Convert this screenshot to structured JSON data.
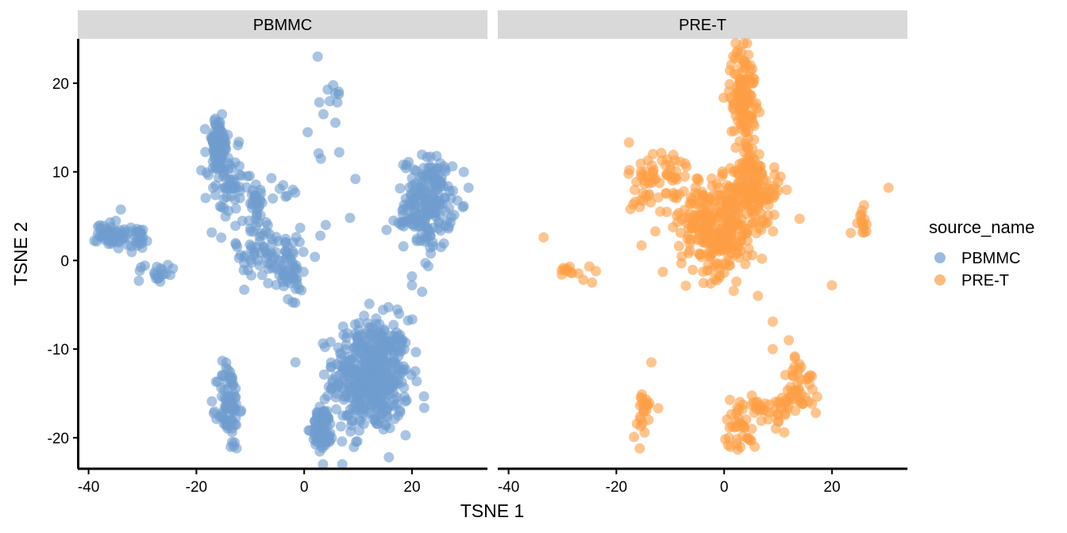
{
  "chart_data": {
    "type": "scatter",
    "xlabel": "TSNE 1",
    "ylabel": "TSNE 2",
    "xlim": [
      -42,
      34
    ],
    "ylim": [
      -23.5,
      25
    ],
    "x_ticks": [
      -40,
      -20,
      0,
      20
    ],
    "y_ticks": [
      -20,
      -10,
      0,
      10,
      20
    ],
    "panels": [
      "PBMMC",
      "PRE-T"
    ],
    "grid": false,
    "legend": {
      "title": "source_name",
      "placement": "right",
      "entries": [
        {
          "name": "PBMMC",
          "color": "#6f9ccf"
        },
        {
          "name": "PRE-T",
          "color": "#fe9e44"
        }
      ]
    },
    "series": [
      {
        "name": "PBMMC",
        "panel": "PBMMC",
        "color": "#6f9ccf",
        "clusters": [
          {
            "cx": 12.5,
            "cy": -13,
            "sx": 3.5,
            "sy": 3.2,
            "n": 480
          },
          {
            "cx": 23,
            "cy": 6.5,
            "sx": 2.2,
            "sy": 2.6,
            "n": 200
          },
          {
            "cx": -16,
            "cy": 13,
            "sx": 1.0,
            "sy": 1.6,
            "n": 90
          },
          {
            "cx": -14,
            "cy": 8,
            "sx": 2.0,
            "sy": 2.2,
            "n": 60
          },
          {
            "cx": -9,
            "cy": 7,
            "sx": 1.0,
            "sy": 1.5,
            "n": 25
          },
          {
            "cx": -36,
            "cy": 3,
            "sx": 1.2,
            "sy": 0.8,
            "n": 50
          },
          {
            "cx": -31,
            "cy": 2.5,
            "sx": 1.4,
            "sy": 0.7,
            "n": 30
          },
          {
            "cx": -27,
            "cy": -1.2,
            "sx": 2.0,
            "sy": 0.7,
            "n": 20
          },
          {
            "cx": -14,
            "cy": -16.5,
            "sx": 1.0,
            "sy": 2.5,
            "n": 90
          },
          {
            "cx": 3.5,
            "cy": -19,
            "sx": 1.0,
            "sy": 1.2,
            "n": 80
          },
          {
            "cx": -5,
            "cy": 0.5,
            "sx": 3.0,
            "sy": 1.6,
            "n": 70
          },
          {
            "cx": -2,
            "cy": -2,
            "sx": 1.2,
            "sy": 1.2,
            "n": 25
          },
          {
            "cx": -10,
            "cy": 2,
            "sx": 1.5,
            "sy": 1.5,
            "n": 25
          },
          {
            "cx": -3,
            "cy": 8,
            "sx": 1.5,
            "sy": 0.8,
            "n": 8
          },
          {
            "cx": 5,
            "cy": 19,
            "sx": 1.2,
            "sy": 1.5,
            "n": 10
          },
          {
            "cx": 3,
            "cy": 13,
            "sx": 1.0,
            "sy": 1.5,
            "n": 3
          },
          {
            "cx": 18.5,
            "cy": 4.5,
            "sx": 1.0,
            "sy": 0.5,
            "n": 8
          }
        ],
        "outliers": [
          [
            2.5,
            23
          ],
          [
            30.5,
            8.2
          ],
          [
            20,
            -2.8
          ],
          [
            20,
            -1.8
          ],
          [
            9.5,
            9.2
          ],
          [
            8.5,
            4.8
          ],
          [
            6.5,
            12.2
          ],
          [
            4,
            4
          ],
          [
            3,
            2.8
          ],
          [
            2,
            0.4
          ],
          [
            22.5,
            -0.3
          ],
          [
            5,
            -12
          ],
          [
            5,
            -14.5
          ],
          [
            3.5,
            -23
          ]
        ]
      },
      {
        "name": "PRE-T",
        "panel": "PRE-T",
        "color": "#fe9e44",
        "clusters": [
          {
            "cx": -1,
            "cy": 3.5,
            "sx": 3.5,
            "sy": 2.6,
            "n": 260
          },
          {
            "cx": 3.5,
            "cy": 7,
            "sx": 2.0,
            "sy": 2.0,
            "n": 90
          },
          {
            "cx": 7,
            "cy": 8,
            "sx": 1.8,
            "sy": 1.5,
            "n": 60
          },
          {
            "cx": 3.5,
            "cy": 19,
            "sx": 1.2,
            "sy": 2.6,
            "n": 120
          },
          {
            "cx": 4,
            "cy": 12,
            "sx": 1.0,
            "sy": 2.0,
            "n": 30
          },
          {
            "cx": -12,
            "cy": 8.5,
            "sx": 2.8,
            "sy": 2.6,
            "n": 70
          },
          {
            "cx": -5,
            "cy": 6,
            "sx": 2.0,
            "sy": 1.8,
            "n": 30
          },
          {
            "cx": -28,
            "cy": -1.2,
            "sx": 1.5,
            "sy": 0.5,
            "n": 12
          },
          {
            "cx": 14,
            "cy": -14,
            "sx": 1.4,
            "sy": 1.8,
            "n": 40
          },
          {
            "cx": 11,
            "cy": -16.5,
            "sx": 1.8,
            "sy": 1.0,
            "n": 25
          },
          {
            "cx": 3,
            "cy": -18.5,
            "sx": 1.5,
            "sy": 1.5,
            "n": 40
          },
          {
            "cx": 6,
            "cy": -16.5,
            "sx": 1.2,
            "sy": 1.0,
            "n": 15
          },
          {
            "cx": -15,
            "cy": -17.5,
            "sx": 1.0,
            "sy": 1.4,
            "n": 25
          },
          {
            "cx": 25.5,
            "cy": 4.5,
            "sx": 0.7,
            "sy": 1.1,
            "n": 14
          }
        ],
        "outliers": [
          [
            -33.5,
            2.6
          ],
          [
            30.5,
            8.2
          ],
          [
            20,
            -2.8
          ],
          [
            14,
            4.7
          ],
          [
            9,
            -6.9
          ],
          [
            9,
            -10
          ],
          [
            12,
            -9
          ],
          [
            -13.5,
            -11.5
          ],
          [
            -23.8,
            -1.2
          ],
          [
            -24.5,
            -2.5
          ],
          [
            23.5,
            3.1
          ],
          [
            17,
            -17.2
          ],
          [
            0,
            -1.4
          ]
        ]
      }
    ]
  }
}
